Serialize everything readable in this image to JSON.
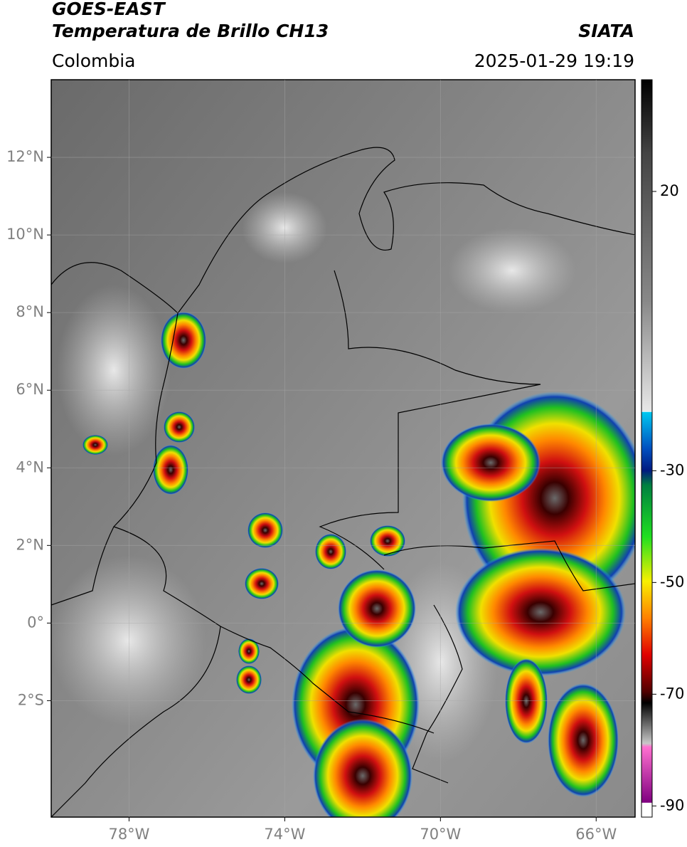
{
  "header": {
    "title": "GOES-EAST",
    "subtitle": "Temperatura de Brillo CH13",
    "region": "Colombia",
    "source": "SIATA",
    "timestamp": "2025-01-29 19:19"
  },
  "map": {
    "xlim": [
      -80,
      -65
    ],
    "ylim": [
      -5,
      14
    ],
    "xticks": [
      {
        "value": -78,
        "label": "78°W"
      },
      {
        "value": -74,
        "label": "74°W"
      },
      {
        "value": -70,
        "label": "70°W"
      },
      {
        "value": -66,
        "label": "66°W"
      }
    ],
    "yticks": [
      {
        "value": 12,
        "label": "12°N"
      },
      {
        "value": 10,
        "label": "10°N"
      },
      {
        "value": 8,
        "label": "8°N"
      },
      {
        "value": 6,
        "label": "6°N"
      },
      {
        "value": 4,
        "label": "4°N"
      },
      {
        "value": 2,
        "label": "2°N"
      },
      {
        "value": 0,
        "label": "0°"
      },
      {
        "value": -2,
        "label": "2°S"
      }
    ],
    "grid": true
  },
  "colorbar": {
    "range": [
      -92,
      40
    ],
    "ticks": [
      20,
      -30,
      -50,
      -70,
      -90
    ]
  }
}
